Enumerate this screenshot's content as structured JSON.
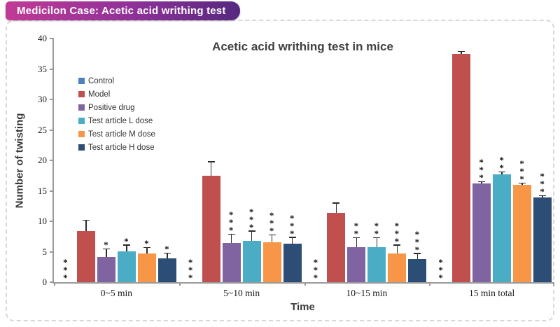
{
  "header": {
    "title": "Medicilon Case: Acetic acid writhing test"
  },
  "chart_data": {
    "type": "bar",
    "title": "Acetic acid writhing test in mice",
    "xlabel": "Time",
    "ylabel": "Number of twisting",
    "ylim": [
      0,
      40
    ],
    "ytick_step": 5,
    "grid": false,
    "legend_position": "upper-left-inside",
    "categories": [
      "0~5 min",
      "5~10 min",
      "10~15 min",
      "15 min total"
    ],
    "series": [
      {
        "name": "Control",
        "color": "#4F81BD",
        "values": [
          0,
          0,
          0,
          0
        ],
        "errors": [
          0,
          0,
          0,
          0
        ],
        "sig": [
          "***",
          "***",
          "***",
          "***"
        ]
      },
      {
        "name": "Model",
        "color": "#C0504D",
        "values": [
          8.4,
          17.5,
          11.4,
          37.5
        ],
        "errors": [
          1.7,
          2.2,
          1.5,
          0.3
        ],
        "sig": [
          "",
          "",
          "",
          ""
        ]
      },
      {
        "name": "Positive drug",
        "color": "#8064A2",
        "values": [
          4.1,
          6.4,
          5.8,
          16.2
        ],
        "errors": [
          1.3,
          1.4,
          1.4,
          0.2
        ],
        "sig": [
          "*",
          "***",
          "**",
          "***"
        ]
      },
      {
        "name": "Test article L dose",
        "color": "#4BACC6",
        "values": [
          5.1,
          6.8,
          5.7,
          17.7
        ],
        "errors": [
          0.9,
          1.5,
          1.5,
          0.3
        ],
        "sig": [
          "*",
          "***",
          "**",
          "**"
        ]
      },
      {
        "name": "Test article M dose",
        "color": "#F79646",
        "values": [
          4.7,
          6.5,
          4.7,
          16.0
        ],
        "errors": [
          0.9,
          1.2,
          1.3,
          0.2
        ],
        "sig": [
          "*",
          "***",
          "***",
          "***"
        ]
      },
      {
        "name": "Test article H dose",
        "color": "#2C4D75",
        "values": [
          3.9,
          6.3,
          3.8,
          13.9
        ],
        "errors": [
          0.8,
          1.0,
          0.8,
          0.2
        ],
        "sig": [
          "*",
          "***",
          "***",
          "***"
        ]
      }
    ]
  }
}
